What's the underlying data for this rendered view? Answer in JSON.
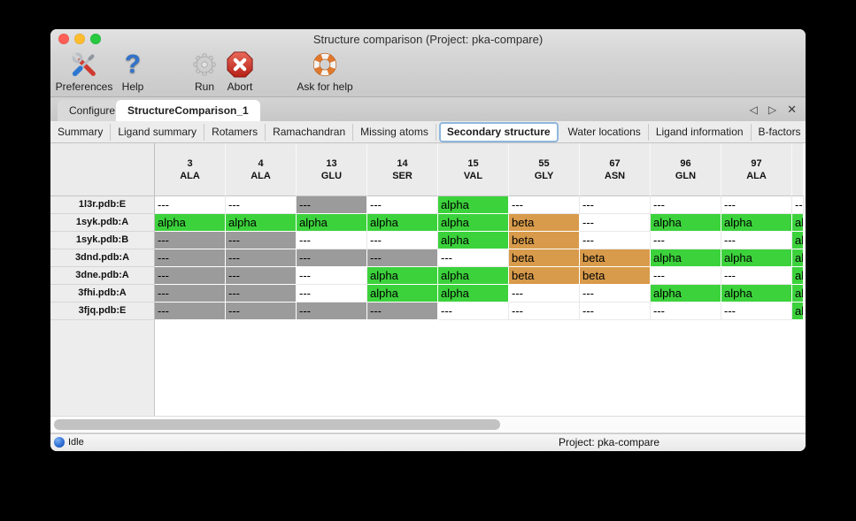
{
  "window": {
    "title": "Structure comparison (Project: pka-compare)"
  },
  "toolbar": {
    "buttons": [
      {
        "label": "Preferences",
        "icon": "tools-icon"
      },
      {
        "label": "Help",
        "icon": "question-mark-icon"
      },
      {
        "label": "Run",
        "icon": "gear-icon"
      },
      {
        "label": "Abort",
        "icon": "abort-icon"
      },
      {
        "label": "Ask for help",
        "icon": "lifebuoy-icon"
      }
    ]
  },
  "tabs": {
    "items": [
      {
        "label": "Configure",
        "selected": false
      },
      {
        "label": "StructureComparison_1",
        "selected": true
      }
    ],
    "nav": {
      "back": "◁",
      "forward": "▷",
      "close": "✕"
    }
  },
  "subtabs": {
    "items": [
      {
        "label": "Summary",
        "selected": false
      },
      {
        "label": "Ligand summary",
        "selected": false
      },
      {
        "label": "Rotamers",
        "selected": false
      },
      {
        "label": "Ramachandran",
        "selected": false
      },
      {
        "label": "Missing atoms",
        "selected": false
      },
      {
        "label": "Secondary structure",
        "selected": true
      },
      {
        "label": "Water locations",
        "selected": false
      },
      {
        "label": "Ligand information",
        "selected": false
      },
      {
        "label": "B-factors",
        "selected": false
      }
    ],
    "nav": {
      "back": "◁",
      "forward": "▷"
    }
  },
  "table": {
    "columns": [
      {
        "residue_number": "3",
        "residue_name": "ALA"
      },
      {
        "residue_number": "4",
        "residue_name": "ALA"
      },
      {
        "residue_number": "13",
        "residue_name": "GLU"
      },
      {
        "residue_number": "14",
        "residue_name": "SER"
      },
      {
        "residue_number": "15",
        "residue_name": "VAL"
      },
      {
        "residue_number": "55",
        "residue_name": "GLY"
      },
      {
        "residue_number": "67",
        "residue_name": "ASN"
      },
      {
        "residue_number": "96",
        "residue_name": "GLN"
      },
      {
        "residue_number": "97",
        "residue_name": "ALA"
      },
      {
        "residue_number": "",
        "residue_name": ""
      }
    ],
    "cell_states": {
      "alpha": {
        "label": "alpha",
        "bg": "#3cd23c"
      },
      "beta": {
        "label": "beta",
        "bg": "#d89b4b"
      },
      "gap_gray": {
        "label": "---",
        "bg": "#9b9b9b"
      },
      "gap_white": {
        "label": "---",
        "bg": "#ffffff"
      }
    },
    "rows": [
      {
        "label": "1l3r.pdb:E",
        "cells": [
          "gap_white",
          "gap_white",
          "gap_gray",
          "gap_white",
          "alpha",
          "gap_white",
          "gap_white",
          "gap_white",
          "gap_white",
          "gap_white"
        ]
      },
      {
        "label": "1syk.pdb:A",
        "cells": [
          "alpha",
          "alpha",
          "alpha",
          "alpha",
          "alpha",
          "beta",
          "gap_white",
          "alpha",
          "alpha",
          "alpha"
        ]
      },
      {
        "label": "1syk.pdb:B",
        "cells": [
          "gap_gray",
          "gap_gray",
          "gap_white",
          "gap_white",
          "alpha",
          "beta",
          "gap_white",
          "gap_white",
          "gap_white",
          "alpha"
        ]
      },
      {
        "label": "3dnd.pdb:A",
        "cells": [
          "gap_gray",
          "gap_gray",
          "gap_gray",
          "gap_gray",
          "gap_white",
          "beta",
          "beta",
          "alpha",
          "alpha",
          "alpha"
        ]
      },
      {
        "label": "3dne.pdb:A",
        "cells": [
          "gap_gray",
          "gap_gray",
          "gap_white",
          "alpha",
          "alpha",
          "beta",
          "beta",
          "gap_white",
          "gap_white",
          "alpha"
        ]
      },
      {
        "label": "3fhi.pdb:A",
        "cells": [
          "gap_gray",
          "gap_gray",
          "gap_white",
          "alpha",
          "alpha",
          "gap_white",
          "gap_white",
          "alpha",
          "alpha",
          "alpha"
        ]
      },
      {
        "label": "3fjq.pdb:E",
        "cells": [
          "gap_gray",
          "gap_gray",
          "gap_gray",
          "gap_gray",
          "gap_white",
          "gap_white",
          "gap_white",
          "gap_white",
          "gap_white",
          "alpha"
        ]
      }
    ]
  },
  "statusbar": {
    "status": "Idle",
    "project": "Project: pka-compare"
  }
}
